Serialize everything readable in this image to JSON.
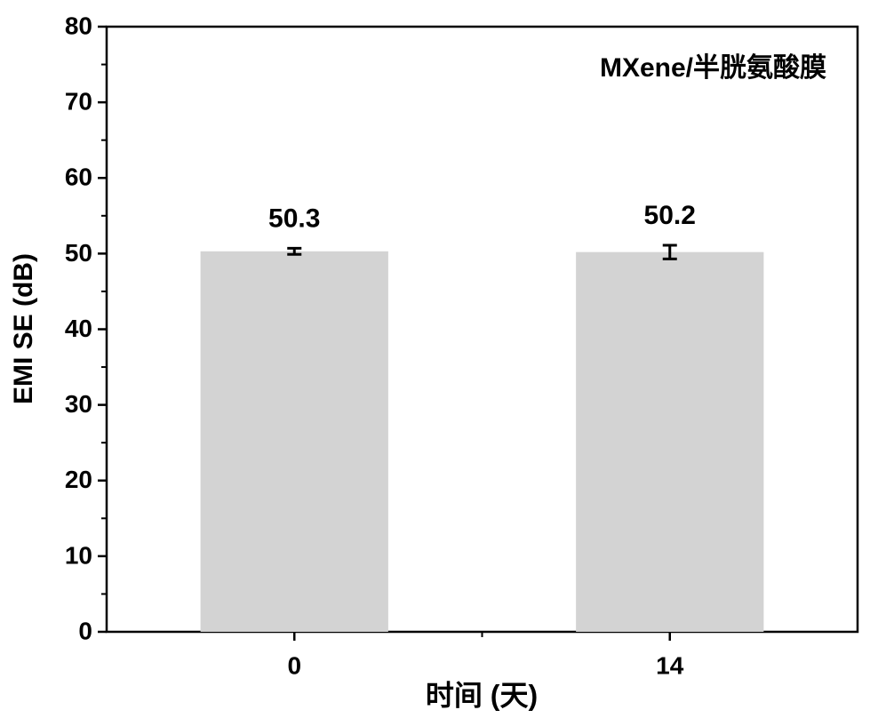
{
  "chart_data": {
    "type": "bar",
    "annotation": "MXene/半胱氨酸膜",
    "x_label": "时间 (天)",
    "y_label": "EMI SE (dB)",
    "categories": [
      "0",
      "14"
    ],
    "values": [
      50.3,
      50.2
    ],
    "errors": [
      0.4,
      0.9
    ],
    "color": "#d3d3d3",
    "ylim": [
      0,
      80
    ],
    "yticks": [
      0,
      10,
      20,
      30,
      40,
      50,
      60,
      70,
      80
    ],
    "grid": false
  }
}
